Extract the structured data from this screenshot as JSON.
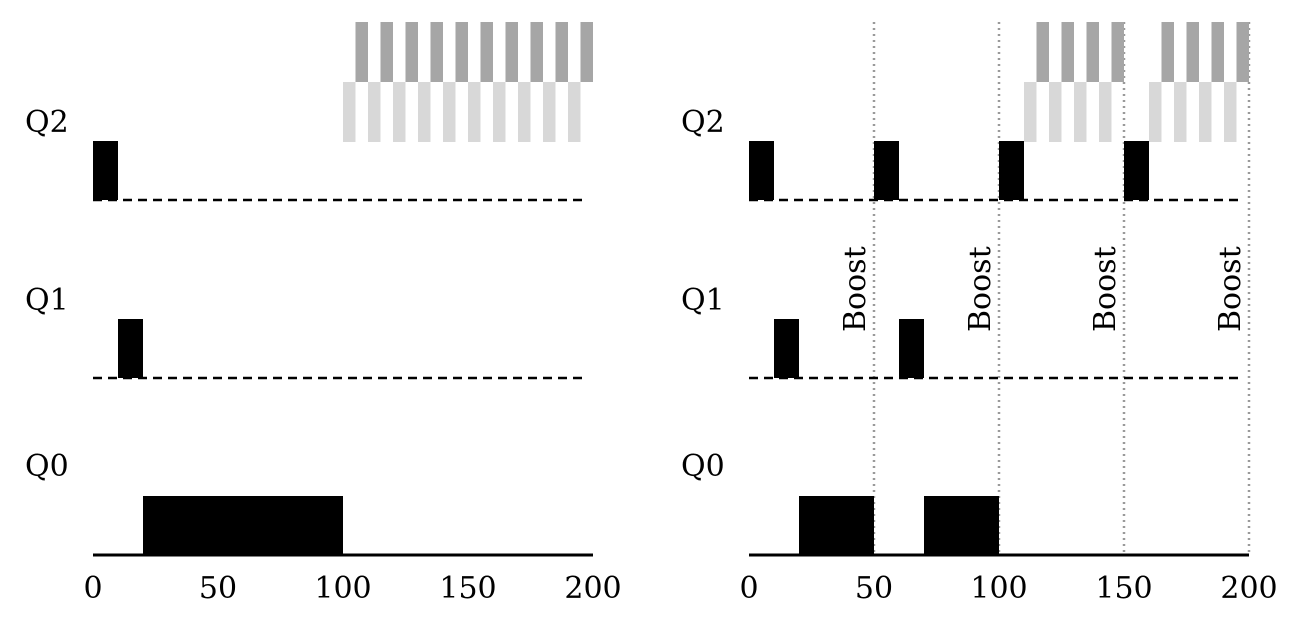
{
  "chart_data": [
    {
      "type": "timeline",
      "title": "",
      "xlabel": "",
      "ylabel": "",
      "xlim": [
        0,
        200
      ],
      "xticks": [
        "0",
        "50",
        "100",
        "150",
        "200"
      ],
      "queues": [
        "Q2",
        "Q1",
        "Q0"
      ],
      "long_job": [
        {
          "queue": "Q2",
          "start": 0,
          "end": 10
        },
        {
          "queue": "Q1",
          "start": 10,
          "end": 20
        },
        {
          "queue": "Q0",
          "start": 20,
          "end": 100
        }
      ],
      "interactive_jobs": {
        "dark": {
          "start": 105,
          "end": 200,
          "period": 10,
          "width": 5
        },
        "light": {
          "start": 100,
          "end": 200,
          "period": 10,
          "width": 5
        }
      },
      "boosts": []
    },
    {
      "type": "timeline",
      "title": "",
      "xlabel": "",
      "ylabel": "",
      "xlim": [
        0,
        200
      ],
      "xticks": [
        "0",
        "50",
        "100",
        "150",
        "200"
      ],
      "queues": [
        "Q2",
        "Q1",
        "Q0"
      ],
      "long_job": [
        {
          "queue": "Q2",
          "start": 0,
          "end": 10
        },
        {
          "queue": "Q1",
          "start": 10,
          "end": 20
        },
        {
          "queue": "Q0",
          "start": 20,
          "end": 50
        },
        {
          "queue": "Q2",
          "start": 50,
          "end": 60
        },
        {
          "queue": "Q1",
          "start": 60,
          "end": 70
        },
        {
          "queue": "Q0",
          "start": 70,
          "end": 100
        },
        {
          "queue": "Q2",
          "start": 100,
          "end": 110
        },
        {
          "queue": "Q2",
          "start": 150,
          "end": 160
        }
      ],
      "interactive_jobs": {
        "dark": [
          {
            "start": 115,
            "end": 150,
            "period": 10,
            "width": 5
          },
          {
            "start": 165,
            "end": 200,
            "period": 10,
            "width": 5
          }
        ],
        "light": [
          {
            "start": 110,
            "end": 145,
            "period": 10,
            "width": 5
          },
          {
            "start": 160,
            "end": 195,
            "period": 10,
            "width": 5
          }
        ]
      },
      "boosts": [
        50,
        100,
        150,
        200
      ],
      "boost_label": "Boost"
    }
  ],
  "colors": {
    "long": "#000000",
    "dark": "#a6a6a6",
    "light": "#d8d8d8",
    "boost_line": "#9a9a9a"
  }
}
